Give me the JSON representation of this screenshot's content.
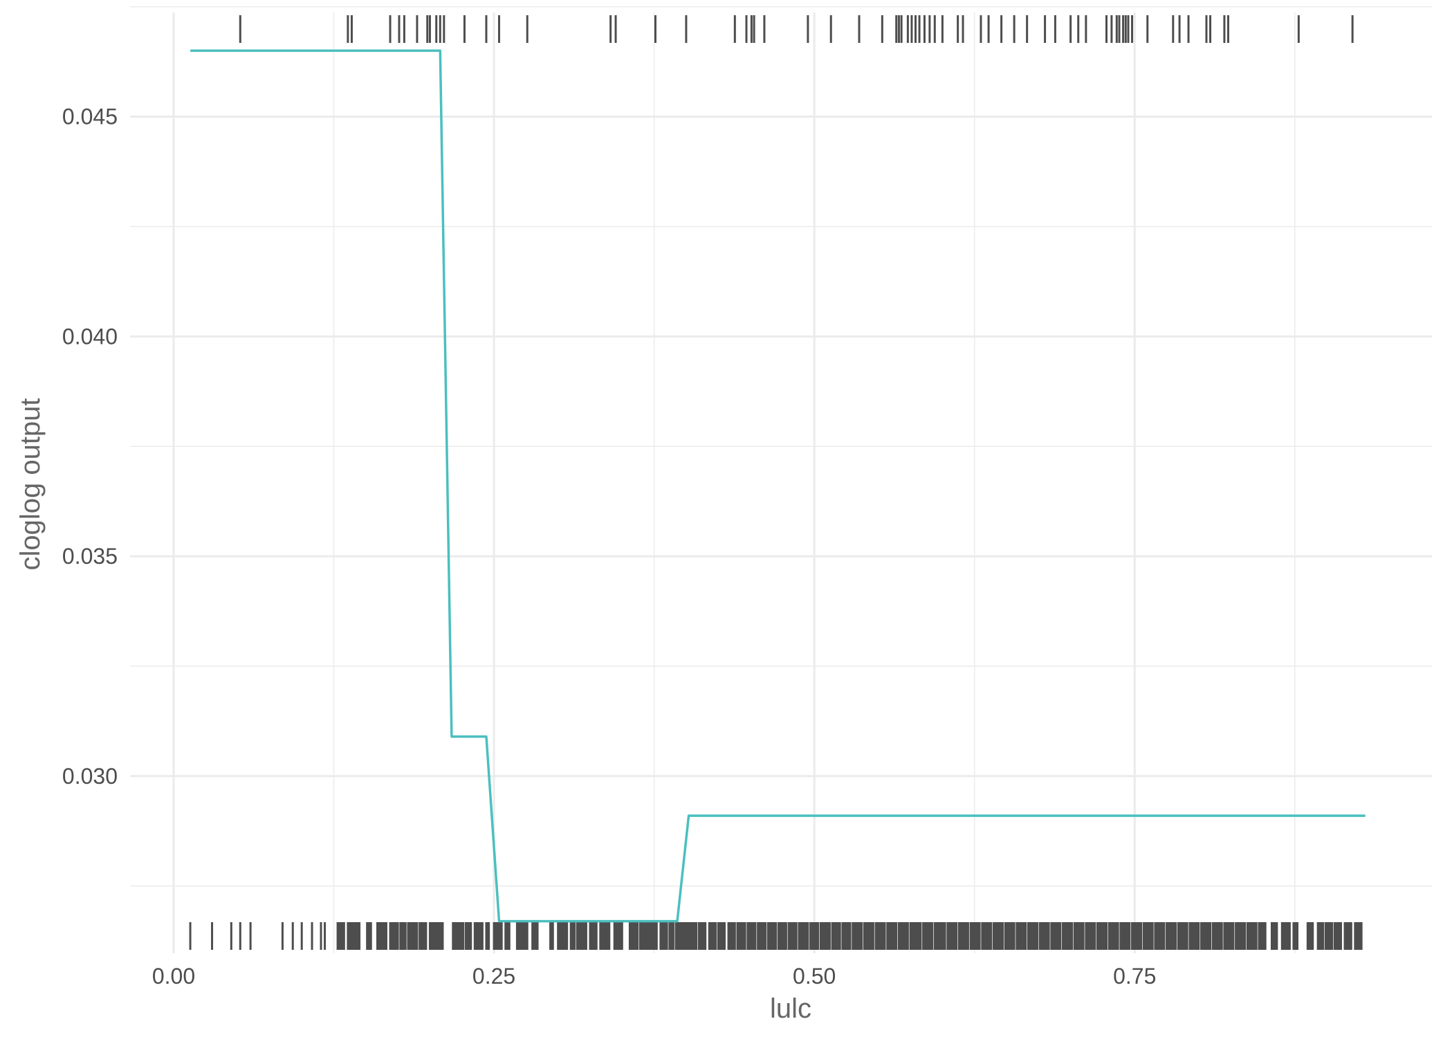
{
  "chart_data": {
    "type": "line",
    "title": "",
    "xlabel": "lulc",
    "ylabel": "cloglog output",
    "xlim": [
      -0.034,
      0.982
    ],
    "ylim": [
      0.02597,
      0.04737
    ],
    "x_ticks": [
      {
        "value": 0.0,
        "label": "0.00"
      },
      {
        "value": 0.25,
        "label": "0.25"
      },
      {
        "value": 0.5,
        "label": "0.50"
      },
      {
        "value": 0.75,
        "label": "0.75"
      }
    ],
    "x_minor_ticks": [
      0.125,
      0.375,
      0.625,
      0.875
    ],
    "y_ticks": [
      {
        "value": 0.03,
        "label": "0.030"
      },
      {
        "value": 0.035,
        "label": "0.035"
      },
      {
        "value": 0.04,
        "label": "0.040"
      },
      {
        "value": 0.045,
        "label": "0.045"
      }
    ],
    "y_minor_ticks": [
      0.0275,
      0.0325,
      0.0375,
      0.0425,
      0.0475
    ],
    "grid": true,
    "colors": {
      "line": "#4bbfbf",
      "rug": "#4d4d4d",
      "grid": "#ebebeb"
    },
    "series": [
      {
        "x": [
          0.013,
          0.208,
          0.217,
          0.244,
          0.254,
          0.393,
          0.402,
          0.93
        ],
        "y": [
          0.0465,
          0.0465,
          0.0309,
          0.0309,
          0.0267,
          0.0267,
          0.0291,
          0.0291
        ]
      }
    ],
    "rug_top": [
      0.052,
      0.136,
      0.139,
      0.169,
      0.176,
      0.18,
      0.19,
      0.198,
      0.2,
      0.205,
      0.208,
      0.211,
      0.227,
      0.244,
      0.254,
      0.276,
      0.341,
      0.345,
      0.376,
      0.4,
      0.438,
      0.447,
      0.451,
      0.453,
      0.461,
      0.495,
      0.513,
      0.535,
      0.553,
      0.564,
      0.566,
      0.568,
      0.573,
      0.576,
      0.579,
      0.582,
      0.586,
      0.59,
      0.594,
      0.6,
      0.612,
      0.616,
      0.63,
      0.636,
      0.646,
      0.656,
      0.666,
      0.68,
      0.688,
      0.7,
      0.706,
      0.712,
      0.728,
      0.732,
      0.736,
      0.738,
      0.741,
      0.743,
      0.745,
      0.748,
      0.76,
      0.78,
      0.785,
      0.792,
      0.806,
      0.809,
      0.82,
      0.823,
      0.878,
      0.92
    ],
    "rug_bottom_points": [
      0.013,
      0.03,
      0.045,
      0.052,
      0.06,
      0.085,
      0.093,
      0.1,
      0.108,
      0.115,
      0.118
    ],
    "rug_bottom_bands": [
      [
        0.128,
        0.133
      ],
      [
        0.136,
        0.145
      ],
      [
        0.151,
        0.154
      ],
      [
        0.159,
        0.166
      ],
      [
        0.169,
        0.175
      ],
      [
        0.177,
        0.181
      ],
      [
        0.183,
        0.19
      ],
      [
        0.192,
        0.197
      ],
      [
        0.2,
        0.21
      ],
      [
        0.218,
        0.226
      ],
      [
        0.228,
        0.232
      ],
      [
        0.235,
        0.241
      ],
      [
        0.244,
        0.246
      ],
      [
        0.25,
        0.256
      ],
      [
        0.259,
        0.262
      ],
      [
        0.268,
        0.276
      ],
      [
        0.28,
        0.284
      ],
      [
        0.294,
        0.296
      ],
      [
        0.3,
        0.307
      ],
      [
        0.31,
        0.313
      ],
      [
        0.315,
        0.322
      ],
      [
        0.325,
        0.33
      ],
      [
        0.333,
        0.34
      ],
      [
        0.344,
        0.35
      ],
      [
        0.356,
        0.362
      ],
      [
        0.364,
        0.377
      ],
      [
        0.38,
        0.385
      ],
      [
        0.387,
        0.39
      ],
      [
        0.392,
        0.408
      ],
      [
        0.41,
        0.415
      ],
      [
        0.418,
        0.423
      ],
      [
        0.425,
        0.43
      ],
      [
        0.433,
        0.438
      ],
      [
        0.44,
        0.446
      ],
      [
        0.448,
        0.454
      ],
      [
        0.456,
        0.462
      ],
      [
        0.464,
        0.47
      ],
      [
        0.472,
        0.478
      ],
      [
        0.48,
        0.486
      ],
      [
        0.488,
        0.495
      ],
      [
        0.497,
        0.503
      ],
      [
        0.505,
        0.512
      ],
      [
        0.514,
        0.52
      ],
      [
        0.522,
        0.528
      ],
      [
        0.53,
        0.537
      ],
      [
        0.539,
        0.546
      ],
      [
        0.548,
        0.555
      ],
      [
        0.557,
        0.564
      ],
      [
        0.566,
        0.573
      ],
      [
        0.575,
        0.583
      ],
      [
        0.585,
        0.592
      ],
      [
        0.594,
        0.602
      ],
      [
        0.604,
        0.611
      ],
      [
        0.613,
        0.62
      ],
      [
        0.622,
        0.629
      ],
      [
        0.631,
        0.638
      ],
      [
        0.64,
        0.647
      ],
      [
        0.649,
        0.656
      ],
      [
        0.658,
        0.665
      ],
      [
        0.667,
        0.674
      ],
      [
        0.676,
        0.683
      ],
      [
        0.685,
        0.692
      ],
      [
        0.694,
        0.701
      ],
      [
        0.703,
        0.71
      ],
      [
        0.712,
        0.719
      ],
      [
        0.721,
        0.728
      ],
      [
        0.73,
        0.737
      ],
      [
        0.739,
        0.746
      ],
      [
        0.748,
        0.755
      ],
      [
        0.757,
        0.764
      ],
      [
        0.766,
        0.773
      ],
      [
        0.775,
        0.782
      ],
      [
        0.784,
        0.791
      ],
      [
        0.793,
        0.8
      ],
      [
        0.802,
        0.809
      ],
      [
        0.811,
        0.818
      ],
      [
        0.82,
        0.827
      ],
      [
        0.829,
        0.836
      ],
      [
        0.838,
        0.845
      ],
      [
        0.847,
        0.852
      ],
      [
        0.857,
        0.861
      ],
      [
        0.865,
        0.871
      ],
      [
        0.874,
        0.877
      ],
      [
        0.885,
        0.889
      ],
      [
        0.893,
        0.897
      ],
      [
        0.899,
        0.904
      ],
      [
        0.906,
        0.911
      ],
      [
        0.914,
        0.919
      ],
      [
        0.922,
        0.927
      ]
    ]
  }
}
